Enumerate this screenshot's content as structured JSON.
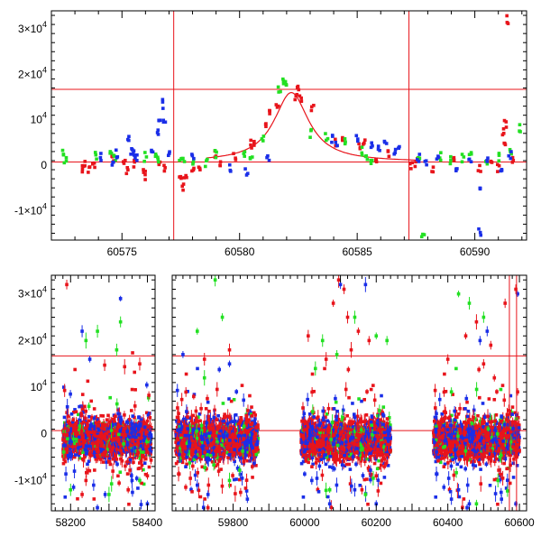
{
  "colors": {
    "red": "#e8141b",
    "green": "#22e022",
    "blue": "#1a2ee8",
    "axis": "#000000",
    "background": "#ffffff"
  },
  "chart_data": [
    {
      "type": "scatter",
      "title": "",
      "xlabel": "",
      "ylabel": "",
      "grid": false,
      "xlim": [
        60572,
        60592.2
      ],
      "ylim": [
        -16500,
        34000
      ],
      "x_ticks": [
        60575,
        60580,
        60585,
        60590
      ],
      "x_ticklabels": [
        "60575",
        "60580",
        "60585",
        "60590"
      ],
      "y_ticks": [
        -10000,
        0,
        10000,
        20000,
        30000
      ],
      "y_ticklabels": [
        {
          "mant": "-1×10",
          "exp": "4"
        },
        {
          "mant": "0",
          "exp": ""
        },
        {
          "mant": "10",
          "exp": "4"
        },
        {
          "mant": "2×10",
          "exp": "4"
        },
        {
          "mant": "3×10",
          "exp": "4"
        }
      ],
      "reference_lines": {
        "horizontal": [
          700,
          16700
        ],
        "vertical": [
          60577.2,
          60587.2
        ]
      },
      "model_curve": {
        "type": "lorentzian",
        "t0": 60582.2,
        "peak": 16000,
        "baseline": 700,
        "tau": 0.9
      },
      "series": [
        {
          "color": "red",
          "points": [
            [
              60573.3,
              -500
            ],
            [
              60573.4,
              500
            ],
            [
              60573.6,
              -1000
            ],
            [
              60573.8,
              200
            ],
            [
              60574.6,
              1700
            ],
            [
              60575.1,
              400
            ],
            [
              60575.2,
              -1100
            ],
            [
              60575.5,
              300
            ],
            [
              60575.9,
              -1800
            ],
            [
              60576.0,
              -2300
            ],
            [
              60576.6,
              -300
            ],
            [
              60576.8,
              -600
            ],
            [
              60577.5,
              -2500
            ],
            [
              60577.6,
              -4600
            ],
            [
              60577.7,
              -2500
            ],
            [
              60578.0,
              -700
            ],
            [
              60578.3,
              -300
            ],
            [
              60579.0,
              2600
            ],
            [
              60579.2,
              600
            ],
            [
              60579.8,
              2200
            ],
            [
              60580.5,
              4500
            ],
            [
              60580.6,
              5200
            ],
            [
              60581.1,
              8400
            ],
            [
              60581.3,
              11700
            ],
            [
              60581.6,
              13400
            ],
            [
              60582.4,
              15200
            ],
            [
              60582.5,
              16400
            ],
            [
              60582.6,
              14500
            ],
            [
              60583.1,
              12800
            ],
            [
              60584.1,
              5200
            ],
            [
              60584.4,
              6100
            ],
            [
              60585.1,
              4000
            ],
            [
              60585.3,
              4600
            ],
            [
              60585.8,
              1000
            ],
            [
              60586.3,
              2800
            ],
            [
              60587.3,
              100
            ],
            [
              60587.5,
              500
            ],
            [
              60588.2,
              -500
            ],
            [
              60589.1,
              1900
            ],
            [
              60590.2,
              -900
            ],
            [
              60590.7,
              1500
            ],
            [
              60591.0,
              -600
            ],
            [
              60591.2,
              7400
            ],
            [
              60591.3,
              9000
            ],
            [
              60591.3,
              4500
            ],
            [
              60591.4,
              32000
            ],
            [
              60591.6,
              900
            ]
          ]
        },
        {
          "color": "green",
          "points": [
            [
              60572.5,
              2500
            ],
            [
              60572.6,
              1500
            ],
            [
              60573.9,
              2200
            ],
            [
              60574.5,
              3000
            ],
            [
              60574.7,
              1500
            ],
            [
              60576.0,
              1800
            ],
            [
              60576.4,
              2600
            ],
            [
              60576.5,
              1000
            ],
            [
              60577.5,
              1400
            ],
            [
              60577.6,
              600
            ],
            [
              60578.0,
              1200
            ],
            [
              60578.6,
              400
            ],
            [
              60579.0,
              2400
            ],
            [
              60580.2,
              2100
            ],
            [
              60580.5,
              1000
            ],
            [
              60581.0,
              6200
            ],
            [
              60581.7,
              16500
            ],
            [
              60581.9,
              18500
            ],
            [
              60582.0,
              17500
            ],
            [
              60583.0,
              7000
            ],
            [
              60583.7,
              6400
            ],
            [
              60584.5,
              5000
            ],
            [
              60585.2,
              3000
            ],
            [
              60585.4,
              2000
            ],
            [
              60585.6,
              1000
            ],
            [
              60587.6,
              1500
            ],
            [
              60588.5,
              2000
            ],
            [
              60589.0,
              1000
            ],
            [
              60589.5,
              1400
            ],
            [
              60589.8,
              2200
            ],
            [
              60590.5,
              600
            ],
            [
              60591.0,
              1800
            ],
            [
              60591.5,
              2500
            ],
            [
              60591.9,
              8000
            ],
            [
              60587.8,
              -16000
            ]
          ]
        },
        {
          "color": "blue",
          "points": [
            [
              60574.1,
              1600
            ],
            [
              60574.6,
              -300
            ],
            [
              60574.8,
              2600
            ],
            [
              60575.3,
              6200
            ],
            [
              60575.4,
              3000
            ],
            [
              60575.5,
              2200
            ],
            [
              60575.6,
              1700
            ],
            [
              60576.3,
              3600
            ],
            [
              60576.5,
              7000
            ],
            [
              60576.6,
              10600
            ],
            [
              60576.7,
              13500
            ],
            [
              60576.8,
              9200
            ],
            [
              60577.0,
              2400
            ],
            [
              60578.0,
              1900
            ],
            [
              60579.6,
              -700
            ],
            [
              60580.3,
              -1200
            ],
            [
              60581.2,
              2000
            ],
            [
              60583.9,
              5600
            ],
            [
              60584.1,
              4600
            ],
            [
              60585.0,
              6200
            ],
            [
              60585.6,
              4700
            ],
            [
              60585.9,
              3500
            ],
            [
              60586.2,
              5600
            ],
            [
              60586.6,
              2600
            ],
            [
              60586.8,
              3800
            ],
            [
              60587.6,
              1500
            ],
            [
              60587.9,
              600
            ],
            [
              60588.4,
              1200
            ],
            [
              60589.2,
              -300
            ],
            [
              60589.8,
              500
            ],
            [
              60590.2,
              -5500
            ],
            [
              60590.5,
              1000
            ],
            [
              60590.2,
              -15000
            ],
            [
              60591.1,
              -500
            ],
            [
              60591.5,
              2000
            ]
          ]
        }
      ]
    },
    {
      "type": "scatter",
      "title": "",
      "xlabel": "",
      "ylabel": "",
      "grid": false,
      "ylim": [
        -16500,
        34000
      ],
      "x_ticklabels": [
        "58200",
        "58400",
        "59800",
        "60000",
        "60200",
        "60400",
        "60600"
      ],
      "y_ticks": [
        -10000,
        0,
        10000,
        20000,
        30000
      ],
      "y_ticklabels": [
        {
          "mant": "-1×10",
          "exp": "4"
        },
        {
          "mant": "0",
          "exp": ""
        },
        {
          "mant": "10",
          "exp": "4"
        },
        {
          "mant": "2×10",
          "exp": "4"
        },
        {
          "mant": "3×10",
          "exp": "4"
        }
      ],
      "reference_lines": {
        "horizontal": [
          700,
          16700
        ],
        "vertical": [
          60572,
          60592
        ]
      },
      "x_segments": [
        {
          "range": [
            58150,
            58420
          ],
          "ticks": [
            58200,
            58400
          ]
        },
        {
          "range": [
            59630,
            60620
          ],
          "ticks": [
            59800,
            60000,
            60200,
            60400,
            60600
          ]
        }
      ],
      "seasons": [
        {
          "start": 58180,
          "end": 58410
        },
        {
          "start": 59640,
          "end": 59870
        },
        {
          "start": 59990,
          "end": 60240
        },
        {
          "start": 60360,
          "end": 60600
        }
      ],
      "series": [
        {
          "color": "red",
          "points": [
            [
              58190,
              32000
            ],
            [
              58230,
              -13000
            ],
            [
              58240,
              -10000
            ],
            [
              58310,
              -8000
            ],
            [
              58350,
              -12000
            ],
            [
              58380,
              15000
            ],
            [
              58400,
              -9000
            ],
            [
              59690,
              8000
            ],
            [
              59720,
              16000
            ],
            [
              59760,
              -8000
            ],
            [
              59790,
              18000
            ],
            [
              59830,
              -6000
            ],
            [
              60010,
              21000
            ],
            [
              60060,
              16000
            ],
            [
              60080,
              28000
            ],
            [
              60095,
              33000
            ],
            [
              60110,
              31000
            ],
            [
              60120,
              25000
            ],
            [
              60130,
              18000
            ],
            [
              60150,
              22000
            ],
            [
              60160,
              -12000
            ],
            [
              60180,
              20000
            ],
            [
              60200,
              -9000
            ],
            [
              60400,
              16000
            ],
            [
              60450,
              21000
            ],
            [
              60480,
              24000
            ],
            [
              60500,
              15000
            ],
            [
              60520,
              19000
            ],
            [
              60530,
              12000
            ],
            [
              60560,
              28000
            ],
            [
              60590,
              31000
            ],
            [
              60595,
              9000
            ]
          ]
        },
        {
          "color": "green",
          "points": [
            [
              58200,
              -12000
            ],
            [
              58240,
              20000
            ],
            [
              58270,
              22000
            ],
            [
              58300,
              -13000
            ],
            [
              58320,
              18000
            ],
            [
              58330,
              24000
            ],
            [
              58380,
              -10000
            ],
            [
              59700,
              22000
            ],
            [
              59720,
              12000
            ],
            [
              59750,
              33000
            ],
            [
              59770,
              25000
            ],
            [
              59790,
              -10000
            ],
            [
              60030,
              14000
            ],
            [
              60050,
              20000
            ],
            [
              60070,
              -12000
            ],
            [
              60090,
              17000
            ],
            [
              60140,
              25000
            ],
            [
              60170,
              -13000
            ],
            [
              60200,
              21000
            ],
            [
              60230,
              20000
            ],
            [
              60410,
              9000
            ],
            [
              60430,
              30000
            ],
            [
              60460,
              28000
            ],
            [
              60480,
              -15000
            ],
            [
              60500,
              25000
            ],
            [
              60540,
              -10000
            ]
          ]
        },
        {
          "color": "blue",
          "points": [
            [
              58210,
              -8000
            ],
            [
              58230,
              22000
            ],
            [
              58250,
              16000
            ],
            [
              58260,
              -11000
            ],
            [
              58290,
              -13000
            ],
            [
              58330,
              29000
            ],
            [
              58360,
              -10000
            ],
            [
              58400,
              -15000
            ],
            [
              59660,
              17000
            ],
            [
              59700,
              -11000
            ],
            [
              59730,
              -13000
            ],
            [
              59790,
              15000
            ],
            [
              59840,
              -14000
            ],
            [
              60020,
              -10000
            ],
            [
              60070,
              -15000
            ],
            [
              60100,
              32000
            ],
            [
              60140,
              -12000
            ],
            [
              60170,
              32000
            ],
            [
              60200,
              -15000
            ],
            [
              60410,
              -14000
            ],
            [
              60430,
              -12000
            ],
            [
              60460,
              -15000
            ],
            [
              60490,
              20000
            ],
            [
              60510,
              22000
            ],
            [
              60550,
              -14000
            ],
            [
              60590,
              -15000
            ],
            [
              60595,
              30000
            ]
          ]
        }
      ]
    }
  ]
}
